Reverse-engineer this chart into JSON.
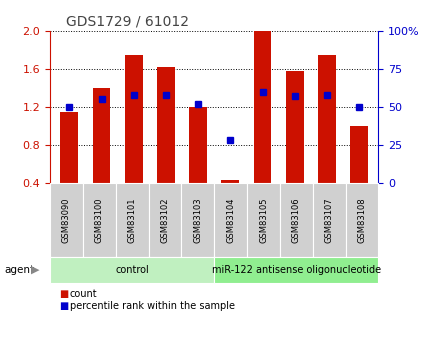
{
  "title": "GDS1729 / 61012",
  "samples": [
    "GSM83090",
    "GSM83100",
    "GSM83101",
    "GSM83102",
    "GSM83103",
    "GSM83104",
    "GSM83105",
    "GSM83106",
    "GSM83107",
    "GSM83108"
  ],
  "count": [
    1.15,
    1.4,
    1.75,
    1.62,
    1.2,
    0.43,
    2.0,
    1.58,
    1.75,
    1.0
  ],
  "percentile": [
    50,
    55,
    58,
    58,
    52,
    28,
    60,
    57,
    58,
    50
  ],
  "ylim_left": [
    0.4,
    2.0
  ],
  "ylim_right": [
    0,
    100
  ],
  "yticks_left": [
    0.4,
    0.8,
    1.2,
    1.6,
    2.0
  ],
  "yticks_right": [
    0,
    25,
    50,
    75,
    100
  ],
  "ytick_labels_right": [
    "0",
    "25",
    "50",
    "75",
    "100%"
  ],
  "bar_color": "#cc1100",
  "marker_color": "#0000cc",
  "bar_width": 0.55,
  "agent_labels": [
    "control",
    "miR-122 antisense oligonucleotide"
  ],
  "agent_groups": [
    5,
    5
  ],
  "agent_colors": [
    "#c0f0c0",
    "#90ee90"
  ],
  "sample_box_color": "#d0d0d0",
  "legend_count_label": "count",
  "legend_percentile_label": "percentile rank within the sample",
  "left_axis_color": "#cc1100",
  "right_axis_color": "#0000cc",
  "title_color": "#444444"
}
